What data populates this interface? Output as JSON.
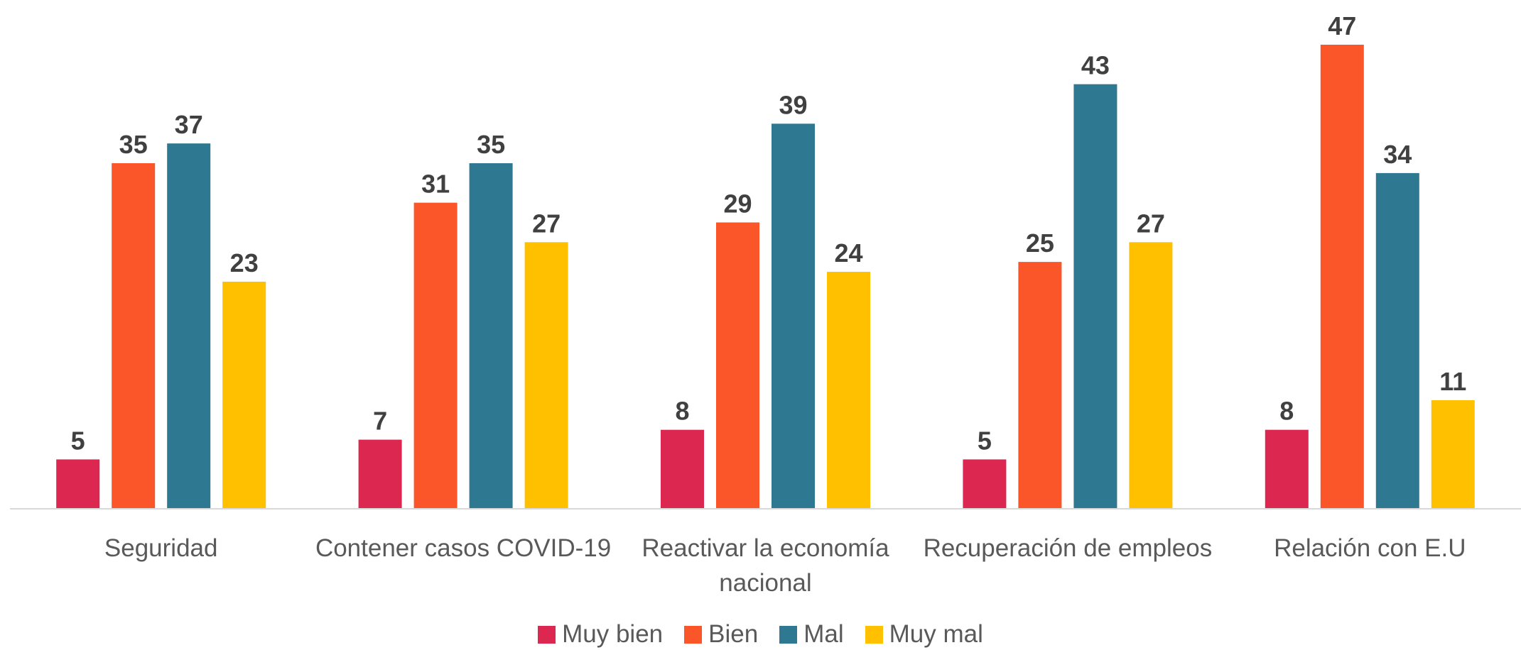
{
  "chart_data": {
    "type": "bar",
    "categories": [
      "Seguridad",
      "Contener casos COVID-19",
      "Reactivar la economía nacional",
      "Recuperación de empleos",
      "Relación con E.U"
    ],
    "series": [
      {
        "name": "Muy bien",
        "color": "#dc2750",
        "values": [
          5,
          7,
          8,
          5,
          8
        ]
      },
      {
        "name": "Bien",
        "color": "#fa5629",
        "values": [
          35,
          31,
          29,
          25,
          47
        ]
      },
      {
        "name": "Mal",
        "color": "#2e7891",
        "values": [
          37,
          35,
          39,
          43,
          34
        ]
      },
      {
        "name": "Muy mal",
        "color": "#ffc000",
        "values": [
          23,
          27,
          24,
          27,
          11
        ]
      }
    ],
    "legend": "bottom"
  }
}
